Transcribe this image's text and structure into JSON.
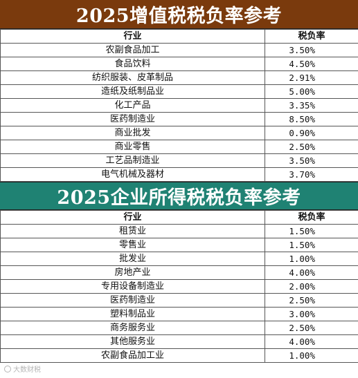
{
  "vat_section": {
    "title": "2025增值税税负率参考",
    "header": {
      "industry": "行业",
      "rate": "税负率"
    },
    "rows": [
      {
        "industry": "农副食品加工",
        "rate": "3.50%"
      },
      {
        "industry": "食品饮料",
        "rate": "4.50%"
      },
      {
        "industry": "纺织服装、皮革制品",
        "rate": "2.91%"
      },
      {
        "industry": "造纸及纸制品业",
        "rate": "5.00%"
      },
      {
        "industry": "化工产品",
        "rate": "3.35%"
      },
      {
        "industry": "医药制造业",
        "rate": "8.50%"
      },
      {
        "industry": "商业批发",
        "rate": "0.90%"
      },
      {
        "industry": "商业零售",
        "rate": "2.50%"
      },
      {
        "industry": "工艺品制造业",
        "rate": "3.50%"
      },
      {
        "industry": "电气机械及器材",
        "rate": "3.70%"
      }
    ]
  },
  "cit_section": {
    "title": "2025企业所得税税负率参考",
    "header": {
      "industry": "行业",
      "rate": "税负率"
    },
    "rows": [
      {
        "industry": "租赁业",
        "rate": "1.50%"
      },
      {
        "industry": "零售业",
        "rate": "1.50%"
      },
      {
        "industry": "批发业",
        "rate": "1.00%"
      },
      {
        "industry": "房地产业",
        "rate": "4.00%"
      },
      {
        "industry": "专用设备制造业",
        "rate": "2.00%"
      },
      {
        "industry": "医药制造业",
        "rate": "2.50%"
      },
      {
        "industry": "塑料制品业",
        "rate": "3.00%"
      },
      {
        "industry": "商务服务业",
        "rate": "2.50%"
      },
      {
        "industry": "其他服务业",
        "rate": "4.00%"
      },
      {
        "industry": "农副食品加工业",
        "rate": "1.00%"
      }
    ]
  },
  "watermark": {
    "text": "大数财税"
  },
  "colors": {
    "vat_banner": "#7a3a0d",
    "cit_banner": "#1f8273",
    "banner_text": "#ffffff",
    "grid": "#555555"
  }
}
